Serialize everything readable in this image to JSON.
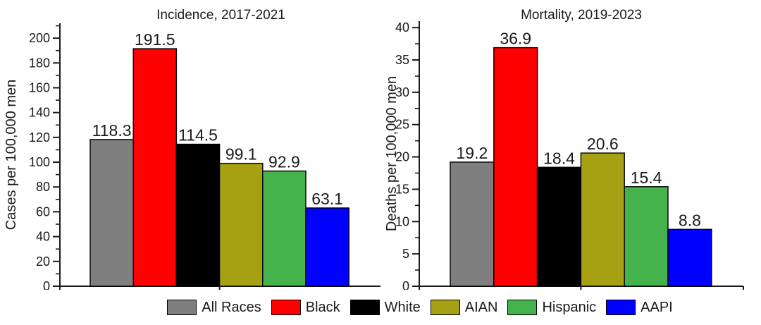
{
  "figure": {
    "background": "#ffffff",
    "text_color": "#1a1a1a",
    "axis_color": "#1a1a1a"
  },
  "legend": {
    "position": "bottom",
    "items": [
      {
        "label": "All Races",
        "color": "#7f7f7f"
      },
      {
        "label": "Black",
        "color": "#ff0000"
      },
      {
        "label": "White",
        "color": "#000000"
      },
      {
        "label": "AIAN",
        "color": "#a5a113"
      },
      {
        "label": "Hispanic",
        "color": "#44b34c"
      },
      {
        "label": "AAPI",
        "color": "#0000ff"
      }
    ]
  },
  "chart_data": [
    {
      "type": "bar",
      "title": "Incidence, 2017-2021",
      "xlabel": "",
      "ylabel": "Cases per 100,000 men",
      "categories": [
        "All Races",
        "Black",
        "White",
        "AIAN",
        "Hispanic",
        "AAPI"
      ],
      "values": [
        118.3,
        191.5,
        114.5,
        99.1,
        92.9,
        63.1
      ],
      "value_labels": [
        "118.3",
        "191.5",
        "114.5",
        "99.1",
        "92.9",
        "63.1"
      ],
      "ylim": [
        0,
        212
      ],
      "yticks": [
        0,
        20,
        40,
        60,
        80,
        100,
        120,
        140,
        160,
        180,
        200
      ],
      "minor_ticks_between_majors": 1,
      "grid": false,
      "legend_position": "bottom"
    },
    {
      "type": "bar",
      "title": "Mortality, 2019-2023",
      "xlabel": "",
      "ylabel": "Deaths per 100,000 men",
      "categories": [
        "All Races",
        "Black",
        "White",
        "AIAN",
        "Hispanic",
        "AAPI"
      ],
      "values": [
        19.2,
        36.9,
        18.4,
        20.6,
        15.4,
        8.8
      ],
      "value_labels": [
        "19.2",
        "36.9",
        "18.4",
        "20.6",
        "15.4",
        "8.8"
      ],
      "ylim": [
        0,
        41
      ],
      "yticks": [
        0,
        5,
        10,
        15,
        20,
        25,
        30,
        35,
        40
      ],
      "minor_ticks_between_majors": 1,
      "grid": false,
      "legend_position": "bottom"
    }
  ]
}
